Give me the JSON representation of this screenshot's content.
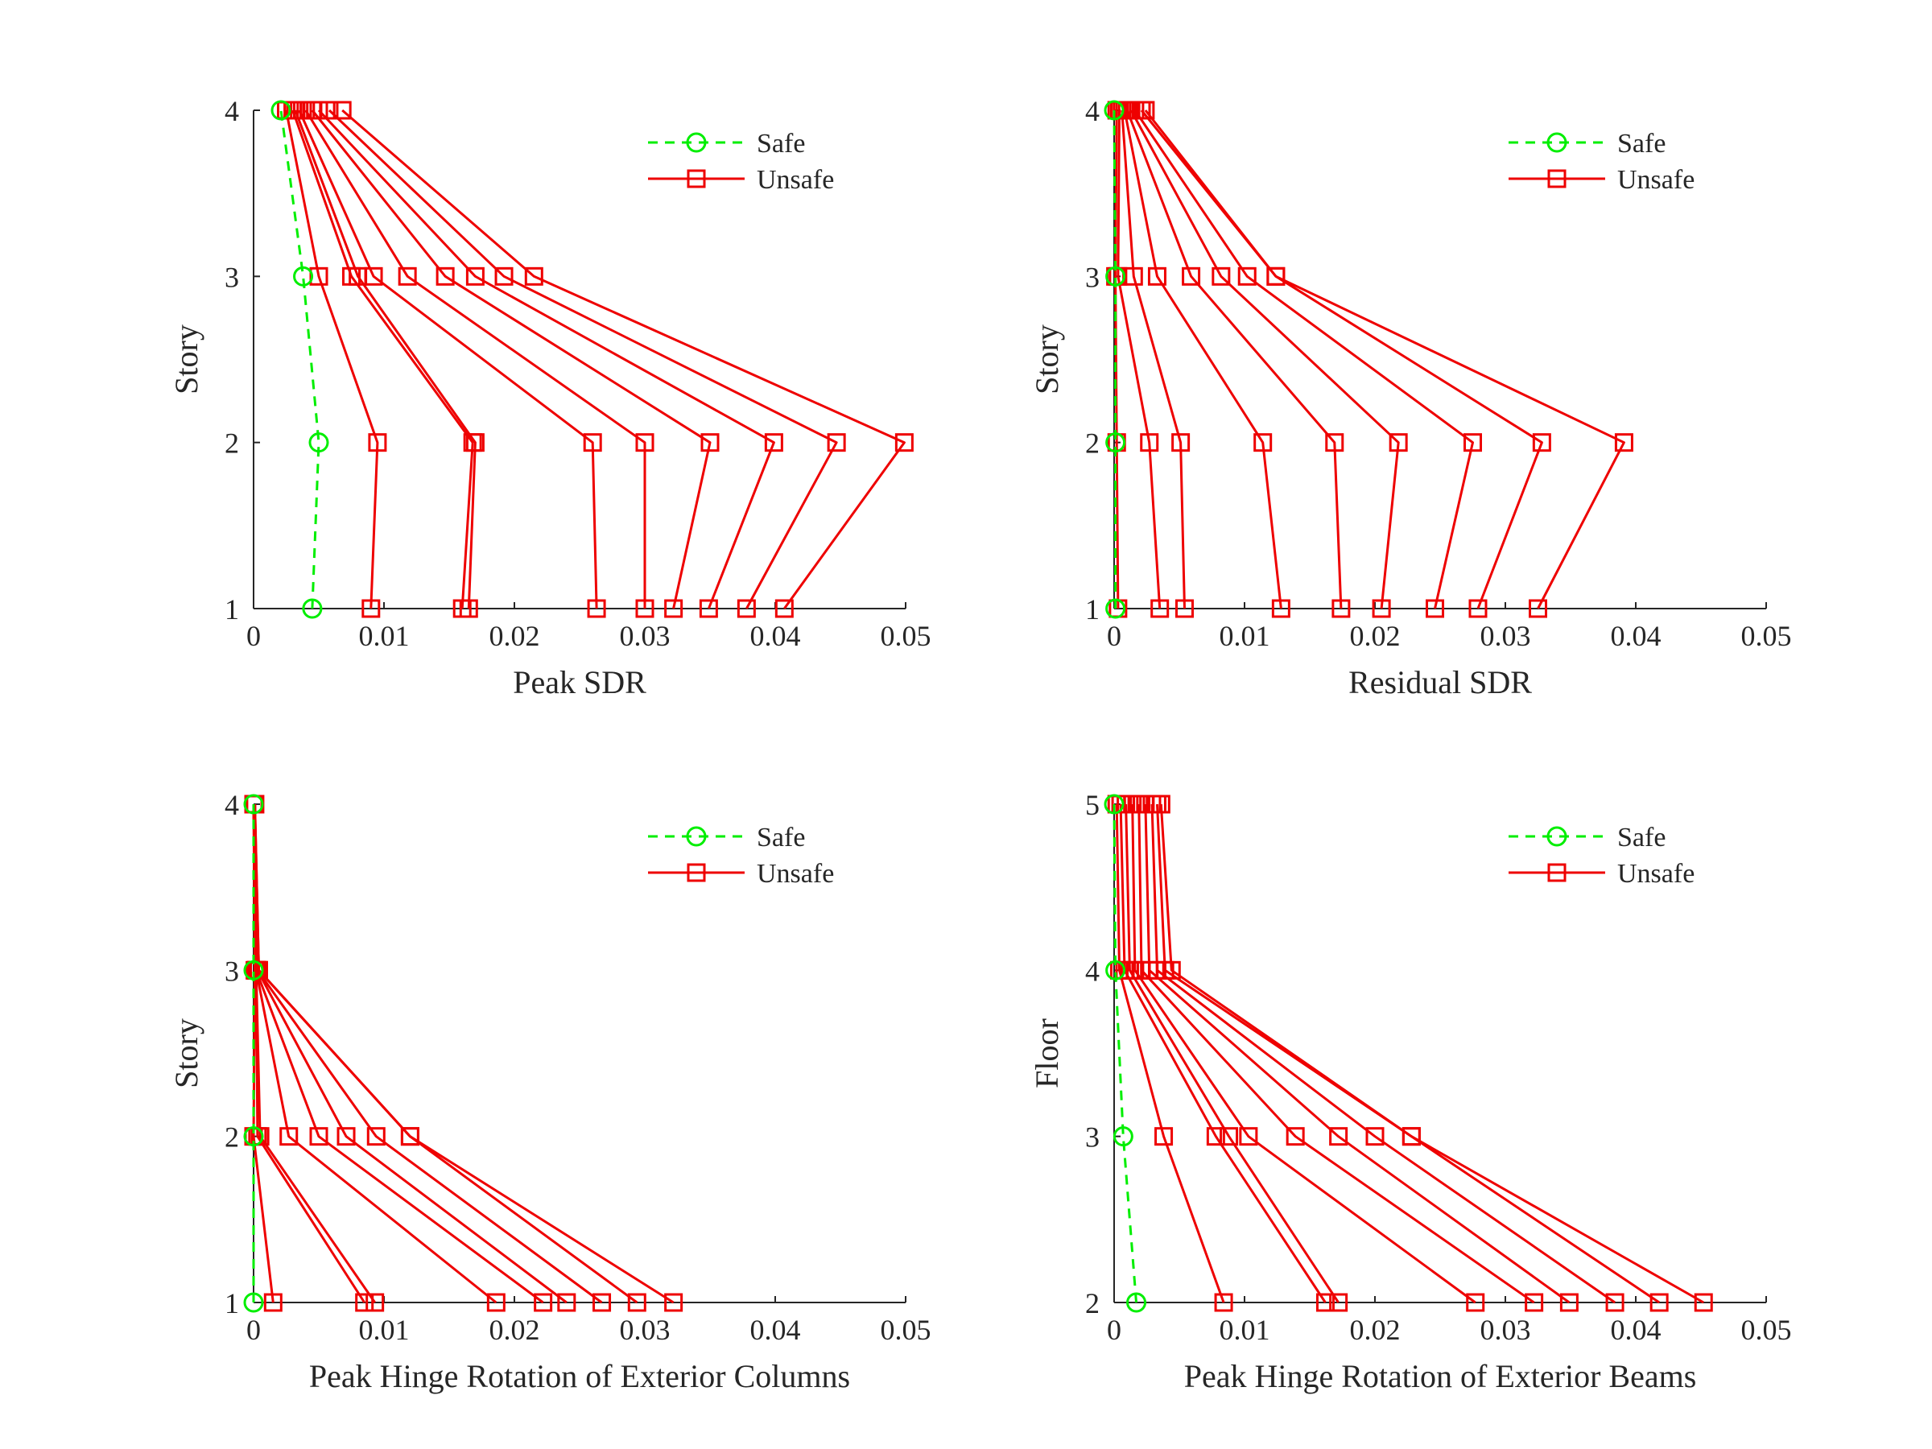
{
  "colors": {
    "safe": "#00ee00",
    "unsafe": "#ee0000",
    "axis": "#262626"
  },
  "chart_data": [
    {
      "type": "line",
      "xlabel": "Peak SDR",
      "ylabel": "Story",
      "xlim": [
        0,
        0.05
      ],
      "ylim": [
        1,
        4
      ],
      "xticks": [
        "0",
        "0.01",
        "0.02",
        "0.03",
        "0.04",
        "0.05"
      ],
      "yticks": [
        "1",
        "2",
        "3",
        "4"
      ],
      "legend": {
        "position": "top-right",
        "entries": [
          "Safe",
          "Unsafe"
        ]
      },
      "series": [
        {
          "name": "Safe",
          "style": "dashed-circle",
          "x": [
            0.0045,
            0.005,
            0.0038,
            0.0021
          ],
          "y": [
            1,
            2,
            3,
            4
          ]
        },
        {
          "name": "Unsafe",
          "style": "solid-square",
          "x": [
            0.009,
            0.0095,
            0.005,
            0.0025
          ],
          "y": [
            1,
            2,
            3,
            4
          ]
        },
        {
          "name": "Unsafe",
          "style": "solid-square",
          "x": [
            0.016,
            0.0168,
            0.0075,
            0.003
          ],
          "y": [
            1,
            2,
            3,
            4
          ]
        },
        {
          "name": "Unsafe",
          "style": "solid-square",
          "x": [
            0.0165,
            0.017,
            0.008,
            0.0032
          ],
          "y": [
            1,
            2,
            3,
            4
          ]
        },
        {
          "name": "Unsafe",
          "style": "solid-square",
          "x": [
            0.0263,
            0.026,
            0.0092,
            0.0035
          ],
          "y": [
            1,
            2,
            3,
            4
          ]
        },
        {
          "name": "Unsafe",
          "style": "solid-square",
          "x": [
            0.03,
            0.03,
            0.0118,
            0.004
          ],
          "y": [
            1,
            2,
            3,
            4
          ]
        },
        {
          "name": "Unsafe",
          "style": "solid-square",
          "x": [
            0.0322,
            0.035,
            0.0147,
            0.0045
          ],
          "y": [
            1,
            2,
            3,
            4
          ]
        },
        {
          "name": "Unsafe",
          "style": "solid-square",
          "x": [
            0.0349,
            0.0399,
            0.017,
            0.005
          ],
          "y": [
            1,
            2,
            3,
            4
          ]
        },
        {
          "name": "Unsafe",
          "style": "solid-square",
          "x": [
            0.0378,
            0.0447,
            0.0192,
            0.0058
          ],
          "y": [
            1,
            2,
            3,
            4
          ]
        },
        {
          "name": "Unsafe",
          "style": "solid-square",
          "x": [
            0.0407,
            0.0499,
            0.0215,
            0.0068
          ],
          "y": [
            1,
            2,
            3,
            4
          ]
        }
      ]
    },
    {
      "type": "line",
      "xlabel": "Residual SDR",
      "ylabel": "Story",
      "xlim": [
        0,
        0.05
      ],
      "ylim": [
        1,
        4
      ],
      "xticks": [
        "0",
        "0.01",
        "0.02",
        "0.03",
        "0.04",
        "0.05"
      ],
      "yticks": [
        "1",
        "2",
        "3",
        "4"
      ],
      "legend": {
        "position": "top-right",
        "entries": [
          "Safe",
          "Unsafe"
        ]
      },
      "series": [
        {
          "name": "Safe",
          "style": "dashed-circle",
          "x": [
            0.0001,
            0.0001,
            0.0001,
            0.0
          ],
          "y": [
            1,
            2,
            3,
            4
          ]
        },
        {
          "name": "Unsafe",
          "style": "solid-square",
          "x": [
            0.0003,
            0.0002,
            0.0001,
            0.0002
          ],
          "y": [
            1,
            2,
            3,
            4
          ]
        },
        {
          "name": "Unsafe",
          "style": "solid-square",
          "x": [
            0.0035,
            0.0027,
            0.0003,
            0.0004
          ],
          "y": [
            1,
            2,
            3,
            4
          ]
        },
        {
          "name": "Unsafe",
          "style": "solid-square",
          "x": [
            0.0054,
            0.0051,
            0.0015,
            0.0006
          ],
          "y": [
            1,
            2,
            3,
            4
          ]
        },
        {
          "name": "Unsafe",
          "style": "solid-square",
          "x": [
            0.0128,
            0.0114,
            0.0033,
            0.0008
          ],
          "y": [
            1,
            2,
            3,
            4
          ]
        },
        {
          "name": "Unsafe",
          "style": "solid-square",
          "x": [
            0.0174,
            0.0169,
            0.0059,
            0.001
          ],
          "y": [
            1,
            2,
            3,
            4
          ]
        },
        {
          "name": "Unsafe",
          "style": "solid-square",
          "x": [
            0.0205,
            0.0218,
            0.0082,
            0.0013
          ],
          "y": [
            1,
            2,
            3,
            4
          ]
        },
        {
          "name": "Unsafe",
          "style": "solid-square",
          "x": [
            0.0246,
            0.0275,
            0.0102,
            0.0016
          ],
          "y": [
            1,
            2,
            3,
            4
          ]
        },
        {
          "name": "Unsafe",
          "style": "solid-square",
          "x": [
            0.0279,
            0.0328,
            0.0124,
            0.0021
          ],
          "y": [
            1,
            2,
            3,
            4
          ]
        },
        {
          "name": "Unsafe",
          "style": "solid-square",
          "x": [
            0.0325,
            0.0391,
            0.0124,
            0.0024
          ],
          "y": [
            1,
            2,
            3,
            4
          ]
        }
      ]
    },
    {
      "type": "line",
      "xlabel": "Peak Hinge Rotation of Exterior Columns",
      "ylabel": "Story",
      "xlim": [
        0,
        0.05
      ],
      "ylim": [
        1,
        4
      ],
      "xticks": [
        "0",
        "0.01",
        "0.02",
        "0.03",
        "0.04",
        "0.05"
      ],
      "yticks": [
        "1",
        "2",
        "3",
        "4"
      ],
      "legend": {
        "position": "top-right",
        "entries": [
          "Safe",
          "Unsafe"
        ]
      },
      "series": [
        {
          "name": "Safe",
          "style": "dashed-circle",
          "x": [
            0.0,
            0.0,
            0.0,
            0.0
          ],
          "y": [
            1,
            2,
            3,
            4
          ]
        },
        {
          "name": "Unsafe",
          "style": "solid-square",
          "x": [
            0.0015,
            0.0,
            0.0001,
            0.0
          ],
          "y": [
            1,
            2,
            3,
            4
          ]
        },
        {
          "name": "Unsafe",
          "style": "solid-square",
          "x": [
            0.0085,
            0.0003,
            0.0002,
            0.0
          ],
          "y": [
            1,
            2,
            3,
            4
          ]
        },
        {
          "name": "Unsafe",
          "style": "solid-square",
          "x": [
            0.0093,
            0.0005,
            0.0002,
            0.0
          ],
          "y": [
            1,
            2,
            3,
            4
          ]
        },
        {
          "name": "Unsafe",
          "style": "solid-square",
          "x": [
            0.0186,
            0.0027,
            0.0002,
            0.0001
          ],
          "y": [
            1,
            2,
            3,
            4
          ]
        },
        {
          "name": "Unsafe",
          "style": "solid-square",
          "x": [
            0.0222,
            0.005,
            0.0002,
            0.0001
          ],
          "y": [
            1,
            2,
            3,
            4
          ]
        },
        {
          "name": "Unsafe",
          "style": "solid-square",
          "x": [
            0.024,
            0.0071,
            0.0003,
            0.0001
          ],
          "y": [
            1,
            2,
            3,
            4
          ]
        },
        {
          "name": "Unsafe",
          "style": "solid-square",
          "x": [
            0.0267,
            0.0094,
            0.0003,
            0.0001
          ],
          "y": [
            1,
            2,
            3,
            4
          ]
        },
        {
          "name": "Unsafe",
          "style": "solid-square",
          "x": [
            0.0294,
            0.012,
            0.0004,
            0.0001
          ],
          "y": [
            1,
            2,
            3,
            4
          ]
        },
        {
          "name": "Unsafe",
          "style": "solid-square",
          "x": [
            0.0322,
            0.012,
            0.0004,
            0.0001
          ],
          "y": [
            1,
            2,
            3,
            4
          ]
        }
      ]
    },
    {
      "type": "line",
      "xlabel": "Peak Hinge Rotation of Exterior Beams",
      "ylabel": "Floor",
      "xlim": [
        0,
        0.05
      ],
      "ylim": [
        2,
        5
      ],
      "xticks": [
        "0",
        "0.01",
        "0.02",
        "0.03",
        "0.04",
        "0.05"
      ],
      "yticks": [
        "2",
        "3",
        "4",
        "5"
      ],
      "legend": {
        "position": "top-right",
        "entries": [
          "Safe",
          "Unsafe"
        ]
      },
      "series": [
        {
          "name": "Safe",
          "style": "dashed-circle",
          "x": [
            0.0017,
            0.0007,
            0.0001,
            0.0
          ],
          "y": [
            2,
            3,
            4,
            5
          ]
        },
        {
          "name": "Unsafe",
          "style": "solid-square",
          "x": [
            0.0084,
            0.0038,
            0.0004,
            0.0002
          ],
          "y": [
            2,
            3,
            4,
            5
          ]
        },
        {
          "name": "Unsafe",
          "style": "solid-square",
          "x": [
            0.0162,
            0.0078,
            0.0008,
            0.0005
          ],
          "y": [
            2,
            3,
            4,
            5
          ]
        },
        {
          "name": "Unsafe",
          "style": "solid-square",
          "x": [
            0.0172,
            0.0088,
            0.0012,
            0.0009
          ],
          "y": [
            2,
            3,
            4,
            5
          ]
        },
        {
          "name": "Unsafe",
          "style": "solid-square",
          "x": [
            0.0277,
            0.0103,
            0.0016,
            0.0014
          ],
          "y": [
            2,
            3,
            4,
            5
          ]
        },
        {
          "name": "Unsafe",
          "style": "solid-square",
          "x": [
            0.0322,
            0.0139,
            0.0021,
            0.0019
          ],
          "y": [
            2,
            3,
            4,
            5
          ]
        },
        {
          "name": "Unsafe",
          "style": "solid-square",
          "x": [
            0.0349,
            0.0172,
            0.0027,
            0.0024
          ],
          "y": [
            2,
            3,
            4,
            5
          ]
        },
        {
          "name": "Unsafe",
          "style": "solid-square",
          "x": [
            0.0384,
            0.02,
            0.0033,
            0.0029
          ],
          "y": [
            2,
            3,
            4,
            5
          ]
        },
        {
          "name": "Unsafe",
          "style": "solid-square",
          "x": [
            0.0418,
            0.0228,
            0.0039,
            0.0033
          ],
          "y": [
            2,
            3,
            4,
            5
          ]
        },
        {
          "name": "Unsafe",
          "style": "solid-square",
          "x": [
            0.0452,
            0.0228,
            0.0044,
            0.0036
          ],
          "y": [
            2,
            3,
            4,
            5
          ]
        }
      ]
    }
  ]
}
